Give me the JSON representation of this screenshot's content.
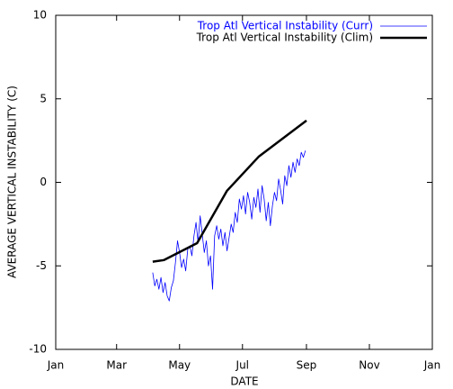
{
  "chart_data": {
    "type": "line",
    "x_label": "DATE",
    "y_label": "AVERAGE VERTICAL INSTABILITY (C)",
    "xlim": [
      0,
      365
    ],
    "xticks": [
      {
        "value": 0,
        "label": "Jan"
      },
      {
        "value": 59,
        "label": "Mar"
      },
      {
        "value": 120,
        "label": "May"
      },
      {
        "value": 181,
        "label": "Jul"
      },
      {
        "value": 243,
        "label": "Sep"
      },
      {
        "value": 304,
        "label": "Nov"
      },
      {
        "value": 365,
        "label": "Jan"
      }
    ],
    "ylim": [
      -10,
      10
    ],
    "yticks": [
      -10,
      -5,
      0,
      5,
      10
    ],
    "legend": "top-right",
    "series": [
      {
        "name": "Trop Atl Vertical Instability (Curr)",
        "color": "#0000ff",
        "width": 0.8,
        "x": [
          94,
          96,
          98,
          100,
          102,
          104,
          106,
          108,
          110,
          112,
          114,
          116,
          118,
          120,
          122,
          124,
          126,
          128,
          130,
          132,
          134,
          136,
          138,
          140,
          142,
          144,
          146,
          148,
          150,
          152,
          154,
          156,
          158,
          160,
          162,
          164,
          166,
          168,
          170,
          172,
          174,
          176,
          178,
          180,
          182,
          184,
          186,
          188,
          190,
          192,
          194,
          196,
          198,
          200,
          202,
          204,
          206,
          208,
          210,
          212,
          214,
          216,
          218,
          220,
          222,
          224,
          226,
          228,
          230,
          232,
          234,
          236,
          238,
          240,
          242
        ],
        "values": [
          -5.4,
          -6.2,
          -5.8,
          -6.4,
          -5.7,
          -6.6,
          -6.0,
          -6.8,
          -7.1,
          -6.3,
          -5.9,
          -4.8,
          -3.5,
          -4.2,
          -5.1,
          -4.6,
          -5.3,
          -4.0,
          -3.8,
          -4.4,
          -3.2,
          -2.4,
          -3.6,
          -2.0,
          -3.1,
          -4.2,
          -3.5,
          -5.0,
          -4.4,
          -6.4,
          -3.2,
          -2.6,
          -3.4,
          -2.8,
          -3.8,
          -3.0,
          -4.1,
          -3.3,
          -2.5,
          -3.0,
          -1.8,
          -2.4,
          -1.0,
          -1.6,
          -0.8,
          -1.9,
          -0.6,
          -1.2,
          -2.2,
          -0.9,
          -1.5,
          -0.4,
          -1.8,
          -0.2,
          -1.0,
          -2.3,
          -1.2,
          -2.6,
          -1.4,
          -0.6,
          -1.1,
          0.2,
          -0.5,
          -1.3,
          0.4,
          -0.2,
          1.0,
          0.3,
          1.2,
          0.6,
          1.4,
          1.0,
          1.8,
          1.5,
          1.9
        ]
      },
      {
        "name": "Trop Atl Vertical Instability (Clim)",
        "color": "#000000",
        "width": 2.5,
        "x": [
          94,
          105,
          137,
          166,
          197,
          243
        ],
        "values": [
          -4.75,
          -4.65,
          -3.64,
          -0.5,
          1.55,
          3.7
        ]
      }
    ]
  }
}
